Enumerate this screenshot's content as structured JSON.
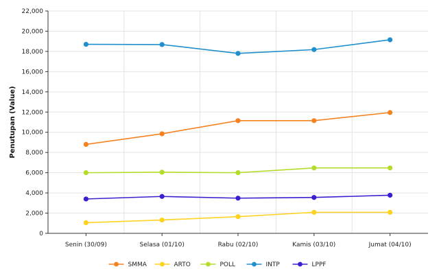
{
  "chart_data": {
    "type": "line",
    "title": "",
    "xlabel": "",
    "ylabel": "Penutupan (Value)",
    "ylim": [
      0,
      22000
    ],
    "y_ticks": [
      0,
      2000,
      4000,
      6000,
      8000,
      10000,
      12000,
      14000,
      16000,
      18000,
      20000,
      22000
    ],
    "y_tick_labels": [
      "0",
      "2,000",
      "4,000",
      "6,000",
      "8,000",
      "10,000",
      "12,000",
      "14,000",
      "16,000",
      "18,000",
      "20,000",
      "22,000"
    ],
    "categories": [
      "Senin (30/09)",
      "Selasa (01/10)",
      "Rabu (02/10)",
      "Kamis (03/10)",
      "Jumat (04/10)"
    ],
    "grid": true,
    "legend_position": "bottom",
    "series": [
      {
        "name": "SMMA",
        "color": "#f58220",
        "values": [
          8800,
          9850,
          11150,
          11150,
          11950
        ]
      },
      {
        "name": "ARTO",
        "color": "#ffd21f",
        "values": [
          1050,
          1320,
          1650,
          2080,
          2080
        ]
      },
      {
        "name": "POLL",
        "color": "#b5dc2a",
        "values": [
          6000,
          6050,
          6000,
          6470,
          6470
        ]
      },
      {
        "name": "INTP",
        "color": "#1f8fce",
        "values": [
          18700,
          18680,
          17800,
          18180,
          19150
        ]
      },
      {
        "name": "LPPF",
        "color": "#3a1fcf",
        "values": [
          3400,
          3650,
          3480,
          3550,
          3770
        ]
      }
    ]
  }
}
